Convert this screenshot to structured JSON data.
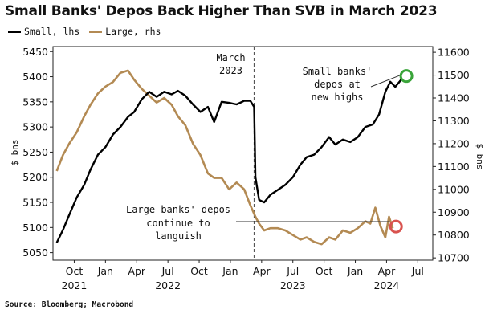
{
  "header": {
    "title": "Small Banks' Depos Back Higher Than SVB in March 2023",
    "source": "Source: Bloomberg; Macrobond"
  },
  "legend": [
    {
      "label": "Small, lhs",
      "color": "#000000"
    },
    {
      "label": "Large, rhs",
      "color": "#b38a53"
    }
  ],
  "chart_data": {
    "type": "line",
    "title": "Small Banks' Depos Back Higher Than SVB in March 2023",
    "ylabel_left": "$ bns",
    "ylabel_right": "$ bns",
    "y_left": {
      "range": [
        5035,
        5460
      ],
      "ticks": [
        5050,
        5100,
        5150,
        5200,
        5250,
        5300,
        5350,
        5400,
        5450
      ]
    },
    "y_right": {
      "range": [
        10690,
        11625
      ],
      "ticks": [
        10700,
        10800,
        10900,
        11000,
        11100,
        11200,
        11300,
        11400,
        11500,
        11600
      ]
    },
    "x_range": [
      2021.58,
      2024.62
    ],
    "x_ticks": [
      {
        "label": "Oct",
        "year": "2021",
        "t": 2021.75
      },
      {
        "label": "Jan",
        "year": "",
        "t": 2022.0
      },
      {
        "label": "Apr",
        "year": "",
        "t": 2022.25
      },
      {
        "label": "Jul",
        "year": "2022",
        "t": 2022.5
      },
      {
        "label": "Oct",
        "year": "",
        "t": 2022.75
      },
      {
        "label": "Jan",
        "year": "",
        "t": 2023.0
      },
      {
        "label": "Apr",
        "year": "",
        "t": 2023.25
      },
      {
        "label": "Jul",
        "year": "2023",
        "t": 2023.5
      },
      {
        "label": "Oct",
        "year": "",
        "t": 2023.75
      },
      {
        "label": "Jan",
        "year": "",
        "t": 2024.0
      },
      {
        "label": "Apr",
        "year": "2024",
        "t": 2024.25
      },
      {
        "label": "Jul",
        "year": "",
        "t": 2024.5
      }
    ],
    "svb_marker": {
      "t": 2023.19,
      "label_line1": "March",
      "label_line2": "2023"
    },
    "series": [
      {
        "name": "Small, lhs",
        "axis": "left",
        "color": "#000000",
        "x": [
          2021.61,
          2021.66,
          2021.71,
          2021.77,
          2021.83,
          2021.88,
          2021.94,
          2022.0,
          2022.06,
          2022.12,
          2022.18,
          2022.23,
          2022.29,
          2022.35,
          2022.41,
          2022.47,
          2022.53,
          2022.58,
          2022.64,
          2022.7,
          2022.76,
          2022.82,
          2022.87,
          2022.93,
          2022.99,
          2023.05,
          2023.11,
          2023.16,
          2023.19,
          2023.2,
          2023.23,
          2023.27,
          2023.32,
          2023.38,
          2023.44,
          2023.5,
          2023.56,
          2023.61,
          2023.67,
          2023.73,
          2023.79,
          2023.84,
          2023.9,
          2023.96,
          2024.02,
          2024.08,
          2024.14,
          2024.19,
          2024.24,
          2024.28,
          2024.32,
          2024.37
        ],
        "values": [
          5070,
          5095,
          5125,
          5160,
          5185,
          5215,
          5245,
          5260,
          5285,
          5300,
          5320,
          5330,
          5355,
          5370,
          5360,
          5370,
          5365,
          5372,
          5362,
          5345,
          5330,
          5340,
          5310,
          5350,
          5348,
          5345,
          5352,
          5352,
          5340,
          5200,
          5155,
          5150,
          5165,
          5175,
          5185,
          5200,
          5225,
          5240,
          5245,
          5260,
          5280,
          5265,
          5275,
          5270,
          5280,
          5300,
          5305,
          5325,
          5370,
          5390,
          5380,
          5395
        ]
      },
      {
        "name": "Large, rhs",
        "axis": "right",
        "color": "#b38a53",
        "x": [
          2021.61,
          2021.66,
          2021.71,
          2021.77,
          2021.83,
          2021.88,
          2021.94,
          2022.0,
          2022.06,
          2022.12,
          2022.18,
          2022.23,
          2022.29,
          2022.35,
          2022.41,
          2022.47,
          2022.53,
          2022.58,
          2022.64,
          2022.7,
          2022.76,
          2022.82,
          2022.87,
          2022.93,
          2022.99,
          2023.05,
          2023.11,
          2023.16,
          2023.2,
          2023.23,
          2023.27,
          2023.32,
          2023.38,
          2023.44,
          2023.5,
          2023.56,
          2023.61,
          2023.67,
          2023.73,
          2023.79,
          2023.84,
          2023.9,
          2023.96,
          2024.02,
          2024.08,
          2024.12,
          2024.16,
          2024.2,
          2024.24,
          2024.27,
          2024.3
        ],
        "values": [
          11080,
          11150,
          11200,
          11250,
          11320,
          11370,
          11420,
          11450,
          11470,
          11510,
          11520,
          11480,
          11440,
          11410,
          11380,
          11400,
          11370,
          11320,
          11280,
          11200,
          11150,
          11070,
          11050,
          11050,
          11000,
          11030,
          11000,
          10930,
          10880,
          10850,
          10820,
          10830,
          10830,
          10820,
          10800,
          10780,
          10790,
          10770,
          10760,
          10790,
          10780,
          10820,
          10810,
          10830,
          10860,
          10850,
          10920,
          10840,
          10790,
          10880,
          10830
        ]
      }
    ],
    "annotations": [
      {
        "text": [
          "Small banks'",
          "depos at",
          "new highs"
        ],
        "target_series": "Small, lhs"
      },
      {
        "text": [
          "Large banks' depos",
          "continue to",
          "languish"
        ],
        "target_series": "Large, rhs"
      }
    ]
  },
  "colors": {
    "small": "#000000",
    "large": "#b38a53",
    "highlight_green": "#3aa43a",
    "highlight_red": "#d9534f"
  }
}
